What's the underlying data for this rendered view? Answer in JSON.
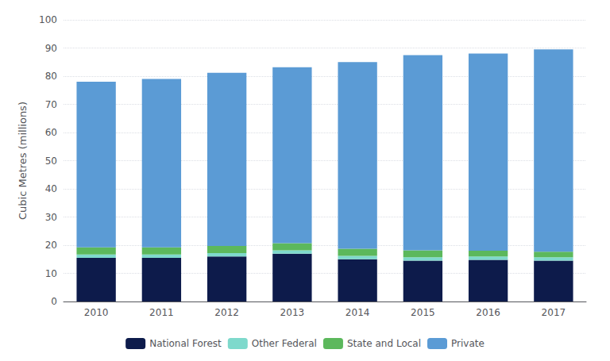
{
  "chart_data": {
    "type": "bar",
    "stacked": true,
    "categories": [
      "2010",
      "2011",
      "2012",
      "2013",
      "2014",
      "2015",
      "2016",
      "2017"
    ],
    "series": [
      {
        "name": "National Forest",
        "color": "#0d1b4b",
        "values": [
          15.5,
          15.5,
          16.0,
          17.0,
          15.0,
          14.5,
          14.8,
          14.5
        ]
      },
      {
        "name": "Other Federal",
        "color": "#7ed9cc",
        "values": [
          1.2,
          1.2,
          1.2,
          1.2,
          1.2,
          1.2,
          1.2,
          1.2
        ]
      },
      {
        "name": "State and Local",
        "color": "#5cb85c",
        "values": [
          2.5,
          2.5,
          2.5,
          2.5,
          2.5,
          2.5,
          2.0,
          2.0
        ]
      },
      {
        "name": "Private",
        "color": "#5b9bd5",
        "values": [
          58.8,
          59.8,
          61.5,
          62.5,
          66.3,
          69.3,
          70.0,
          71.8
        ]
      }
    ],
    "ylabel": "Cubic Metres (millions)",
    "ylim": [
      0,
      100
    ],
    "yticks": [
      0,
      10,
      20,
      30,
      40,
      50,
      60,
      70,
      80,
      90,
      100
    ],
    "grid": true,
    "legend": "bottom"
  }
}
